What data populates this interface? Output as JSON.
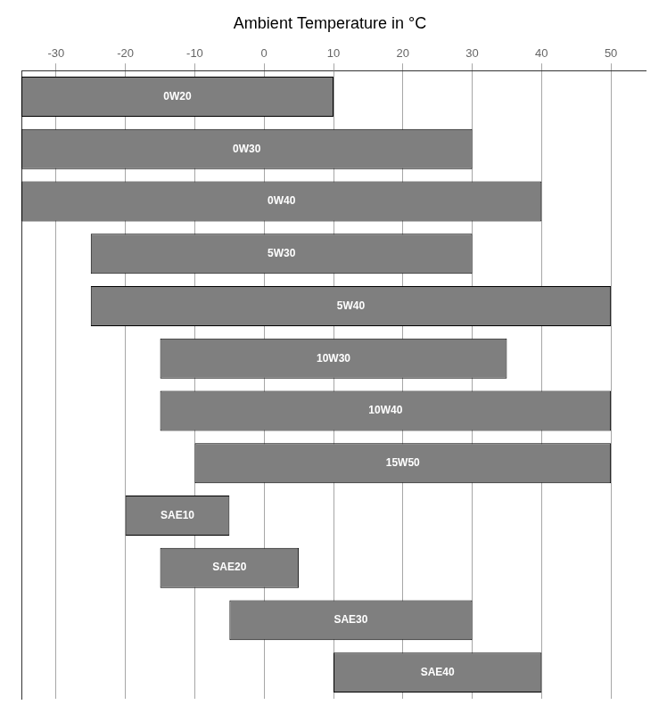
{
  "chart_data": {
    "type": "bar",
    "orientation": "horizontal",
    "title": "Ambient Temperature in °C",
    "categories": [
      "0W20",
      "0W30",
      "0W40",
      "5W30",
      "5W40",
      "10W30",
      "10W40",
      "15W50",
      "SAE10",
      "SAE20",
      "SAE30",
      "SAE40"
    ],
    "values": [
      [
        -35,
        10
      ],
      [
        -35,
        30
      ],
      [
        -35,
        40
      ],
      [
        -25,
        30
      ],
      [
        -25,
        50
      ],
      [
        -15,
        35
      ],
      [
        -15,
        50
      ],
      [
        -10,
        50
      ],
      [
        -20,
        -5
      ],
      [
        -15,
        5
      ],
      [
        -5,
        30
      ],
      [
        10,
        40
      ]
    ],
    "color": "#7f7f7f",
    "xlim": [
      -35,
      55
    ],
    "xticks": [
      -30,
      -20,
      -10,
      0,
      10,
      20,
      30,
      40,
      50
    ],
    "grid": true,
    "tick_labels": "x"
  }
}
